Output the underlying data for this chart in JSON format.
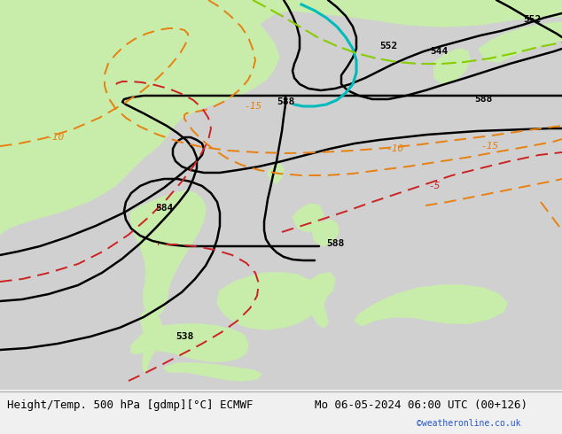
{
  "title_left": "Height/Temp. 500 hPa [gdmp][°C] ECMWF",
  "title_right": "Mo 06-05-2024 06:00 UTC (00+126)",
  "watermark": "©weatheronline.co.uk",
  "ocean_color": "#d0d0d0",
  "land_color": "#c8edaa",
  "contour_black": "#000000",
  "contour_orange": "#e88010",
  "contour_red": "#cc2222",
  "contour_cyan": "#00bbbb",
  "contour_lime": "#88cc00",
  "bar_color": "#f0f0f0",
  "text_color": "#000000",
  "watermark_color": "#2255cc",
  "font_size_title": 9,
  "font_size_label": 8,
  "font_size_watermark": 7,
  "figw": 6.34,
  "figh": 4.9,
  "dpi": 100
}
